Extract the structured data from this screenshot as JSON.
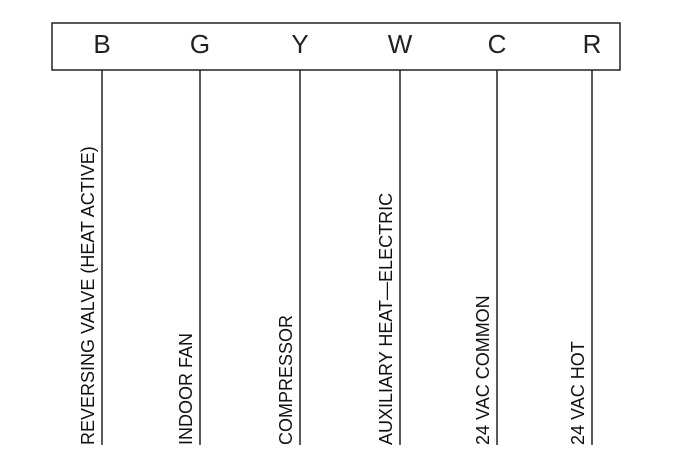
{
  "terminals": [
    {
      "letter": "B",
      "label": "REVERSING VALVE (HEAT ACTIVE)"
    },
    {
      "letter": "G",
      "label": "INDOOR FAN"
    },
    {
      "letter": "Y",
      "label": "COMPRESSOR"
    },
    {
      "letter": "W",
      "label": "AUXILIARY HEAT—ELECTRIC"
    },
    {
      "letter": "C",
      "label": "24 VAC COMMON"
    },
    {
      "letter": "R",
      "label": "24 VAC HOT"
    }
  ]
}
